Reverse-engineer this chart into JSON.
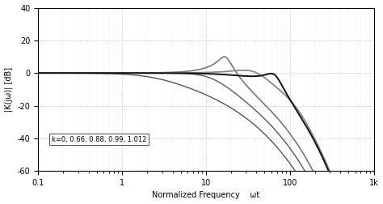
{
  "title": "",
  "xlabel": "Normalized Frequency    ωt",
  "ylabel": "|K(jω)| [dB]",
  "xlim": [
    0.1,
    1000
  ],
  "ylim": [
    -60,
    40
  ],
  "yticks": [
    -60,
    -40,
    -20,
    0,
    20,
    40
  ],
  "xticks": [
    0.1,
    1,
    10,
    100,
    1000
  ],
  "xticklabels": [
    "0.1",
    "1",
    "10",
    "100",
    "1k"
  ],
  "k_values": [
    0,
    0.66,
    0.88,
    0.99,
    1.012
  ],
  "legend_text": "k=0, 0.66, 0.88, 0.99, 1.012",
  "grid_color": "#aaaaaa",
  "line_colors": [
    "#555555",
    "#666666",
    "#777777",
    "#888888",
    "#111111"
  ],
  "background_color": "#ffffff",
  "theta_scale": 0.1
}
